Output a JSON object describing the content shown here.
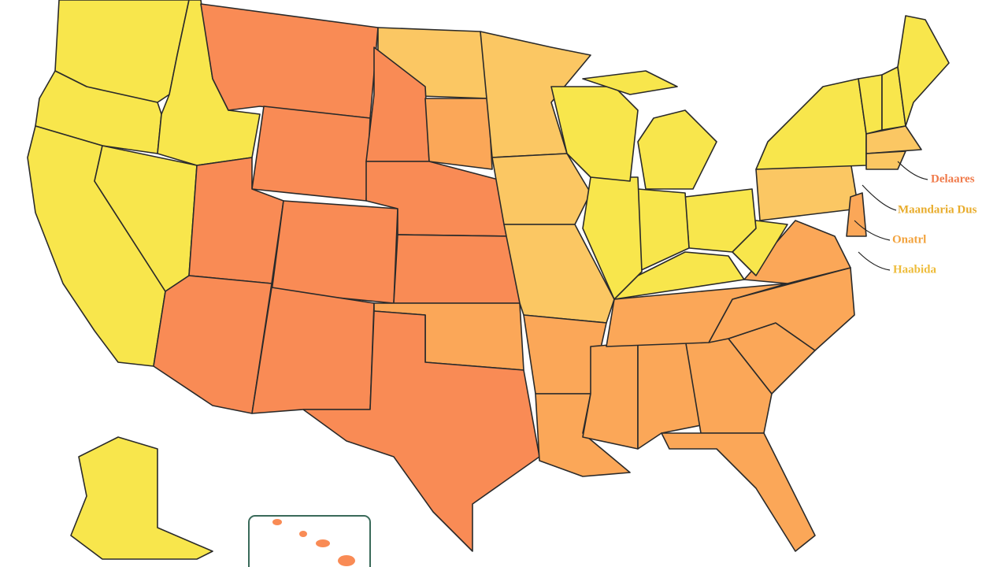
{
  "labels": [
    {
      "text": "Delaares",
      "color": "#f07a4a"
    },
    {
      "text": "Maandaria Dus",
      "color": "#e8ac2c"
    },
    {
      "text": "Onatrl",
      "color": "#f2a23c"
    },
    {
      "text": "Haabida",
      "color": "#eebc3a"
    }
  ]
}
